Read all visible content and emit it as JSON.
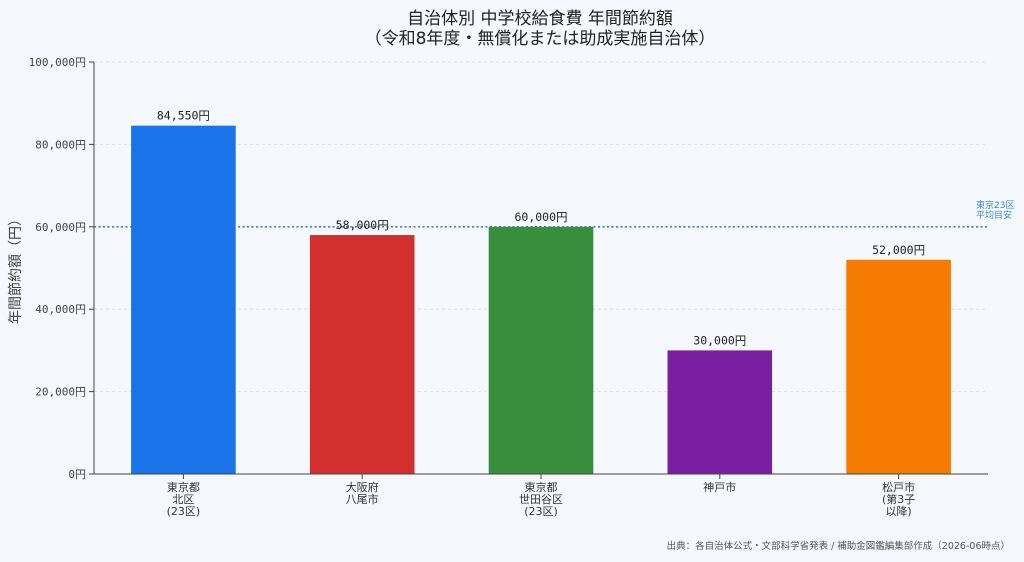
{
  "chart_data": {
    "type": "bar",
    "title_lines": [
      "自治体別 中学校給食費 年間節約額",
      "（令和8年度・無償化または助成実施自治体）"
    ],
    "ylabel": "年間節約額（円）",
    "xlabel": "",
    "ylim": [
      0,
      100000
    ],
    "yticks": [
      0,
      20000,
      40000,
      60000,
      80000,
      100000
    ],
    "ytick_labels": [
      "0円",
      "20,000円",
      "40,000円",
      "60,000円",
      "80,000円",
      "100,000円"
    ],
    "categories": [
      [
        "東京都",
        "北区",
        "(23区)"
      ],
      [
        "大阪府",
        "八尾市"
      ],
      [
        "東京都",
        "世田谷区",
        "(23区)"
      ],
      [
        "神戸市"
      ],
      [
        "松戸市",
        "(第3子",
        "以降)"
      ]
    ],
    "values": [
      84550,
      58000,
      60000,
      30000,
      52000
    ],
    "value_labels": [
      "84,550円",
      "58,000円",
      "60,000円",
      "30,000円",
      "52,000円"
    ],
    "colors": [
      "#1a73e8",
      "#d32f2f",
      "#388e3c",
      "#7b1fa2",
      "#f57c00"
    ],
    "reference_line": {
      "value": 60000,
      "label_lines": [
        "東京23区",
        "平均目安"
      ],
      "color": "#3a86c9",
      "style": "dotted"
    },
    "grid": true,
    "source": "出典：各自治体公式・文部科学省発表 / 補助金図鑑編集部作成（2026-06時点）"
  }
}
